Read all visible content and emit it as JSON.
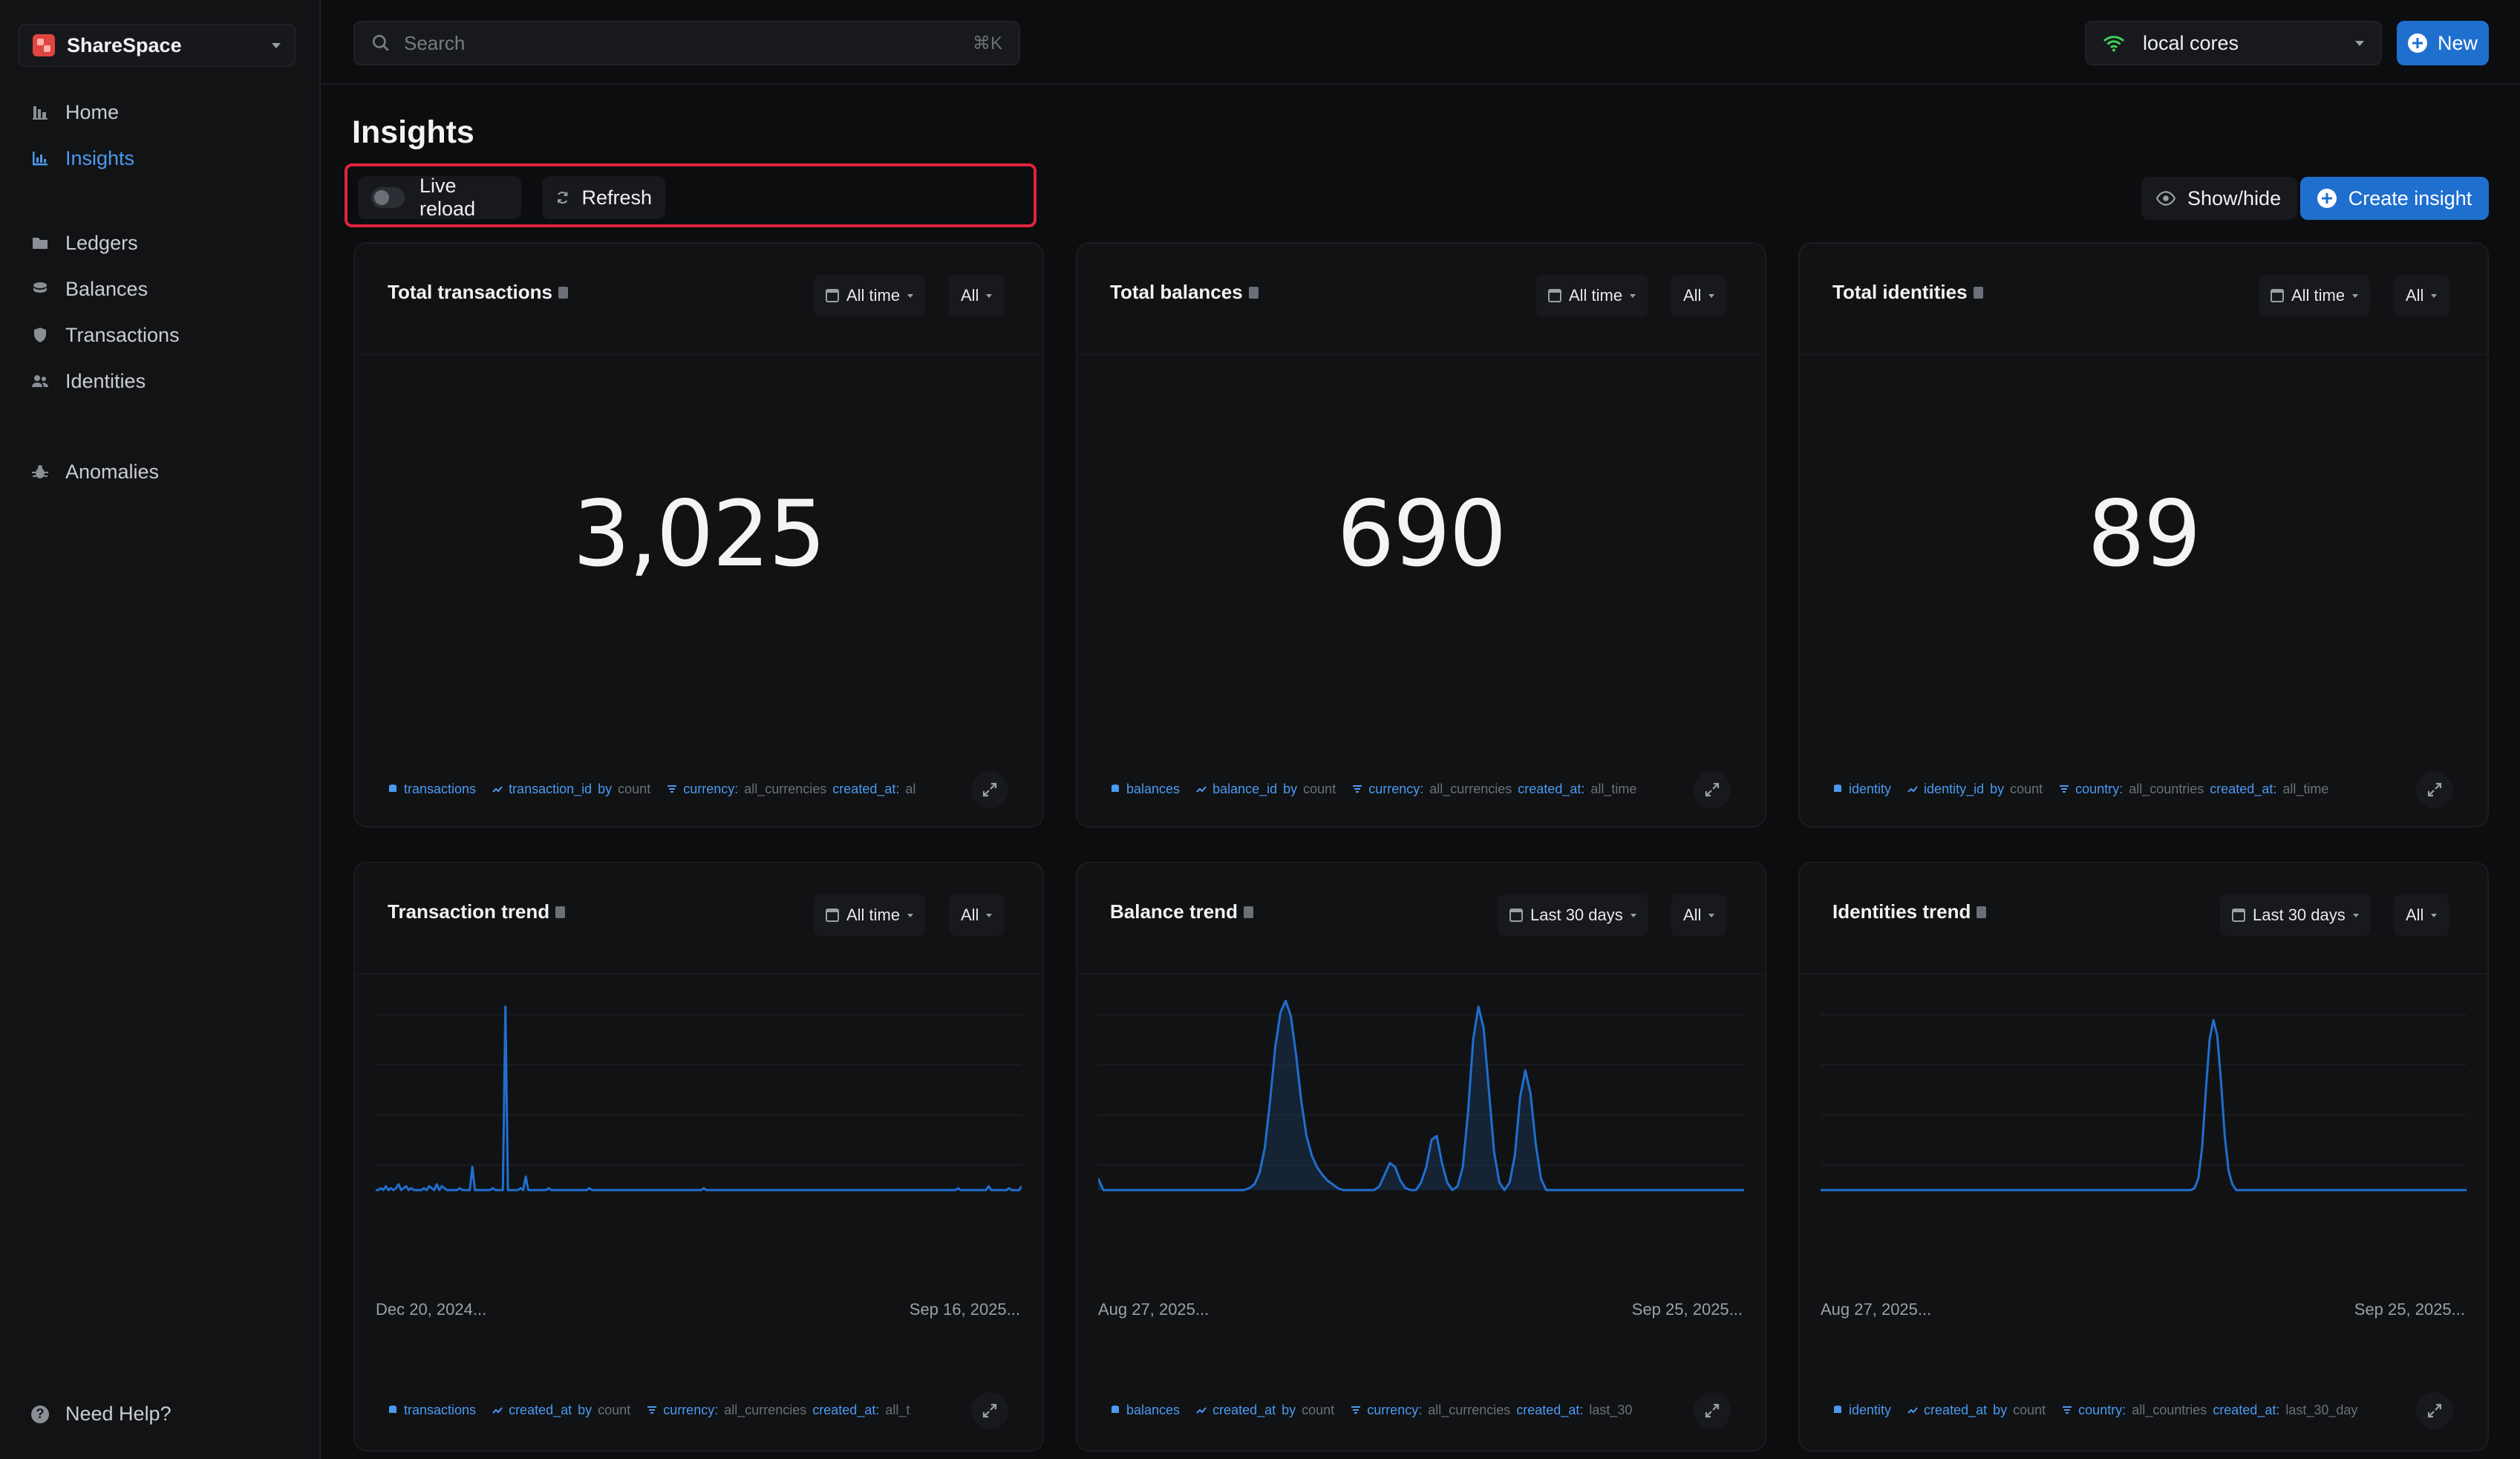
{
  "app": {
    "workspace": "ShareSpace"
  },
  "sidebar": {
    "items": [
      {
        "label": "Home",
        "icon": "home-icon"
      },
      {
        "label": "Insights",
        "icon": "chart-icon",
        "active": true
      },
      {
        "label": "Ledgers",
        "icon": "folder-icon"
      },
      {
        "label": "Balances",
        "icon": "coins-icon"
      },
      {
        "label": "Transactions",
        "icon": "shield-icon"
      },
      {
        "label": "Identities",
        "icon": "users-icon"
      },
      {
        "label": "Anomalies",
        "icon": "bug-icon"
      }
    ],
    "help_label": "Need Help?"
  },
  "topbar": {
    "search_placeholder": "Search",
    "search_shortcut": "⌘K",
    "cores_label": "local cores",
    "new_label": "New"
  },
  "page": {
    "title": "Insights",
    "live_reload_label": "Live reload",
    "refresh_label": "Refresh",
    "show_hide_label": "Show/hide",
    "create_label": "Create insight"
  },
  "cards": [
    {
      "title": "Total transactions",
      "range": "All time",
      "filter": "All",
      "value": "3,025",
      "footer": {
        "source": "transactions",
        "metric": "transaction_id",
        "by": "by",
        "agg": "count",
        "filter_key": "currency:",
        "filter_val": "all_currencies",
        "extra_key": "created_at:",
        "extra_val": "al"
      }
    },
    {
      "title": "Total balances",
      "range": "All time",
      "filter": "All",
      "value": "690",
      "footer": {
        "source": "balances",
        "metric": "balance_id",
        "by": "by",
        "agg": "count",
        "filter_key": "currency:",
        "filter_val": "all_currencies",
        "extra_key": "created_at:",
        "extra_val": "all_time"
      }
    },
    {
      "title": "Total identities",
      "range": "All time",
      "filter": "All",
      "value": "89",
      "footer": {
        "source": "identity",
        "metric": "identity_id",
        "by": "by",
        "agg": "count",
        "filter_key": "country:",
        "filter_val": "all_countries",
        "extra_key": "created_at:",
        "extra_val": "all_time"
      }
    },
    {
      "title": "Transaction trend",
      "range": "All time",
      "filter": "All",
      "x_start": "Dec 20, 2024...",
      "x_end": "Sep 16, 2025...",
      "footer": {
        "source": "transactions",
        "metric": "created_at",
        "by": "by",
        "agg": "count",
        "filter_key": "currency:",
        "filter_val": "all_currencies",
        "extra_key": "created_at:",
        "extra_val": "all_t"
      }
    },
    {
      "title": "Balance trend",
      "range": "Last 30 days",
      "filter": "All",
      "x_start": "Aug 27, 2025...",
      "x_end": "Sep 25, 2025...",
      "footer": {
        "source": "balances",
        "metric": "created_at",
        "by": "by",
        "agg": "count",
        "filter_key": "currency:",
        "filter_val": "all_currencies",
        "extra_key": "created_at:",
        "extra_val": "last_30"
      }
    },
    {
      "title": "Identities trend",
      "range": "Last 30 days",
      "filter": "All",
      "x_start": "Aug 27, 2025...",
      "x_end": "Sep 25, 2025...",
      "footer": {
        "source": "identity",
        "metric": "created_at",
        "by": "by",
        "agg": "count",
        "filter_key": "country:",
        "filter_val": "all_countries",
        "extra_key": "created_at:",
        "extra_val": "last_30_day"
      }
    }
  ],
  "chart_data": [
    {
      "type": "line",
      "x_label_start": "Dec 20, 2024...",
      "x_label_end": "Sep 16, 2025...",
      "values": [
        0,
        0,
        1,
        0,
        2,
        0,
        1,
        0,
        1,
        3,
        0,
        1,
        2,
        0,
        1,
        0,
        0,
        0,
        0,
        1,
        0,
        2,
        1,
        0,
        3,
        0,
        2,
        1,
        0,
        0,
        0,
        0,
        0,
        1,
        0,
        0,
        0,
        0,
        12,
        0,
        0,
        0,
        0,
        0,
        0,
        0,
        1,
        0,
        0,
        0,
        0,
        95,
        0,
        0,
        0,
        0,
        0,
        1,
        0,
        7,
        0,
        0,
        0,
        0,
        0,
        0,
        0,
        0,
        1,
        0,
        0,
        0,
        0,
        0,
        0,
        0,
        0,
        0,
        0,
        0,
        0,
        0,
        0,
        0,
        1,
        0,
        0,
        0,
        0,
        0,
        0,
        0,
        0,
        0,
        0,
        0,
        0,
        0,
        0,
        0,
        0,
        0,
        0,
        0,
        0,
        0,
        0,
        0,
        0,
        0,
        0,
        0,
        0,
        0,
        0,
        0,
        0,
        0,
        0,
        0,
        0,
        0,
        0,
        0,
        0,
        0,
        0,
        0,
        0,
        1,
        0,
        0,
        0,
        0,
        0,
        0,
        0,
        0,
        0,
        0,
        0,
        0,
        0,
        0,
        0,
        0,
        0,
        0,
        0,
        0,
        0,
        0,
        0,
        0,
        0,
        0,
        0,
        0,
        0,
        0,
        0,
        0,
        0,
        0,
        0,
        0,
        0,
        0,
        0,
        0,
        0,
        0,
        0,
        0,
        0,
        0,
        0,
        0,
        0,
        0,
        0,
        0,
        0,
        0,
        0,
        0,
        0,
        0,
        0,
        0,
        0,
        0,
        0,
        0,
        0,
        0,
        0,
        0,
        0,
        0,
        0,
        0,
        0,
        0,
        0,
        0,
        0,
        0,
        0,
        0,
        0,
        0,
        0,
        0,
        0,
        0,
        0,
        0,
        0,
        0,
        0,
        0,
        0,
        0,
        0,
        0,
        0,
        0,
        0,
        1,
        0,
        0,
        0,
        0,
        0,
        0,
        0,
        0,
        0,
        0,
        0,
        2,
        0,
        0,
        0,
        0,
        0,
        0,
        0,
        1,
        0,
        0,
        0,
        0,
        2
      ],
      "ylim": [
        0,
        100
      ],
      "color": "#1f6fcf"
    },
    {
      "type": "area",
      "x_label_start": "Aug 27, 2025...",
      "x_label_end": "Sep 25, 2025...",
      "values": [
        6,
        0,
        0,
        0,
        0,
        0,
        0,
        0,
        0,
        0,
        0,
        0,
        0,
        0,
        0,
        0,
        0,
        0,
        0,
        0,
        0,
        0,
        0,
        0,
        0,
        0,
        0,
        0,
        0,
        1,
        3,
        9,
        22,
        46,
        74,
        92,
        98,
        90,
        70,
        46,
        28,
        18,
        12,
        8,
        5,
        3,
        1,
        0,
        0,
        0,
        0,
        0,
        0,
        0,
        2,
        8,
        14,
        12,
        5,
        1,
        0,
        0,
        4,
        12,
        26,
        28,
        14,
        4,
        0,
        2,
        12,
        40,
        78,
        95,
        84,
        52,
        20,
        4,
        0,
        4,
        18,
        48,
        62,
        50,
        24,
        6,
        0,
        0,
        0,
        0,
        0,
        0,
        0,
        0,
        0,
        0,
        0,
        0,
        0,
        0,
        0,
        0,
        0,
        0,
        0,
        0,
        0,
        0,
        0,
        0,
        0,
        0,
        0,
        0,
        0,
        0,
        0,
        0,
        0,
        0,
        0,
        0,
        0,
        0,
        0
      ],
      "ylim": [
        0,
        100
      ],
      "color": "#1f6fcf"
    },
    {
      "type": "line",
      "x_label_start": "Aug 27, 2025...",
      "x_label_end": "Sep 25, 2025...",
      "values": [
        0,
        0,
        0,
        0,
        0,
        0,
        0,
        0,
        0,
        0,
        0,
        0,
        0,
        0,
        0,
        0,
        0,
        0,
        0,
        0,
        0,
        0,
        0,
        0,
        0,
        0,
        0,
        0,
        0,
        0,
        0,
        0,
        0,
        0,
        0,
        0,
        0,
        0,
        0,
        0,
        0,
        0,
        0,
        0,
        0,
        0,
        0,
        0,
        0,
        0,
        0,
        0,
        0,
        0,
        0,
        0,
        0,
        0,
        0,
        0,
        0,
        0,
        0,
        0,
        0,
        0,
        0,
        0,
        0,
        0,
        0,
        0,
        0,
        0,
        0,
        0,
        0,
        0,
        0,
        0,
        0,
        0,
        0,
        0,
        0,
        0,
        0,
        0,
        0,
        0,
        0,
        0,
        0,
        0,
        0,
        0,
        0,
        0,
        0,
        1,
        6,
        22,
        52,
        78,
        88,
        80,
        56,
        28,
        10,
        3,
        0,
        0,
        0,
        0,
        0,
        0,
        0,
        0,
        0,
        0,
        0,
        0,
        0,
        0,
        0,
        0,
        0,
        0,
        0,
        0,
        0,
        0,
        0,
        0,
        0,
        0,
        0,
        0,
        0,
        0,
        0,
        0,
        0,
        0,
        0,
        0,
        0,
        0,
        0,
        0,
        0,
        0,
        0,
        0,
        0,
        0,
        0,
        0,
        0,
        0,
        0,
        0,
        0,
        0,
        0,
        0,
        0,
        0,
        0,
        0,
        0,
        0
      ],
      "ylim": [
        0,
        100
      ],
      "color": "#1f6fcf"
    }
  ]
}
